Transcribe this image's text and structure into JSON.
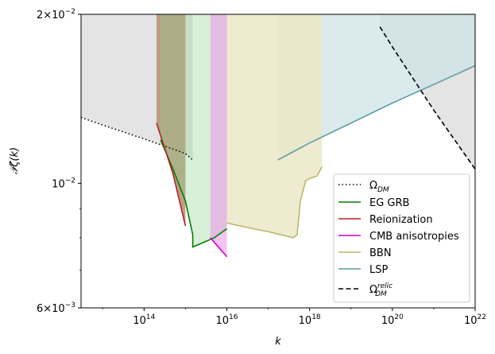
{
  "chart_data": {
    "type": "area",
    "xlabel": "k",
    "ylabel": "𝒫ζ(k)",
    "xscale": "log",
    "yscale": "log",
    "xlim": [
      3000000000000.0,
      1e+22
    ],
    "ylim": [
      0.006,
      0.02
    ],
    "x_ticks": [
      {
        "value": 100000000000000.0,
        "base": "10",
        "exp": "14"
      },
      {
        "value": 1e+16,
        "base": "10",
        "exp": "16"
      },
      {
        "value": 1e+18,
        "base": "10",
        "exp": "18"
      },
      {
        "value": 1e+20,
        "base": "10",
        "exp": "20"
      },
      {
        "value": 1e+22,
        "base": "10",
        "exp": "22"
      }
    ],
    "y_ticks": [
      {
        "value": 0.02,
        "mant": "2",
        "exp": "−2"
      },
      {
        "value": 0.01,
        "mant": "",
        "exp": "−2"
      },
      {
        "value": 0.006,
        "mant": "6",
        "exp": "−3"
      }
    ],
    "legend_position": "lower-right",
    "series": [
      {
        "name": "Ω_DM",
        "label_main": "Ω",
        "label_sub": "DM",
        "label_sup": "",
        "color": "#000000",
        "dash": "dotted",
        "fill": "#d9d9d9",
        "x": [
          3000000000000.0,
          10000000000000.0,
          100000000000000.0,
          1000000000000000.0,
          1500000000000000.0
        ],
        "y": [
          0.0131,
          0.0127,
          0.012,
          0.0113,
          0.011
        ]
      },
      {
        "name": "EG GRB",
        "label_main": "EG GRB",
        "color": "#008000",
        "dash": "solid",
        "fill": "#8fd18f",
        "x": [
          250000000000000.0,
          500000000000000.0,
          1000000000000000.0,
          1500000000000000.0,
          1500000000000000.0,
          5000000000000000.0,
          1e+16
        ],
        "y": [
          0.01195,
          0.0106,
          0.0093,
          0.0081,
          0.0077,
          0.008,
          0.0083
        ]
      },
      {
        "name": "Reionization",
        "label_main": "Reionization",
        "color": "#b22222",
        "dash": "solid",
        "fill": "#b8947a",
        "x": [
          200000000000000.0,
          500000000000000.0,
          1000000000000000.0
        ],
        "y": [
          0.0128,
          0.0104,
          0.0084
        ]
      },
      {
        "name": "CMB anisotropies",
        "label_main": "CMB anisotropies",
        "color": "#cc00cc",
        "dash": "solid",
        "fill": "#ee88ee",
        "x": [
          4000000000000000.0,
          1e+16
        ],
        "y": [
          0.008,
          0.0074
        ]
      },
      {
        "name": "BBN",
        "label_main": "BBN",
        "color": "#bdb76b",
        "dash": "solid",
        "fill": "#ebe7c8",
        "x": [
          1e+16,
          2e+16,
          1e+17,
          2e+17,
          4e+17,
          5e+17,
          6e+17,
          8e+17,
          1e+18,
          1.5e+18,
          2e+18
        ],
        "y": [
          0.0085,
          0.0084,
          0.0082,
          0.0081,
          0.008,
          0.0081,
          0.0093,
          0.0101,
          0.0102,
          0.0103,
          0.0107
        ]
      },
      {
        "name": "LSP",
        "label_main": "LSP",
        "color": "#5f9ea0",
        "dash": "solid",
        "fill": "#cfe3e6",
        "x": [
          1.7e+17,
          1e+18,
          1e+19,
          1e+20,
          1e+21,
          1e+22
        ],
        "y": [
          0.011,
          0.0118,
          0.0128,
          0.0139,
          0.015,
          0.0162
        ]
      },
      {
        "name": "Ω_DM^relic",
        "label_main": "Ω",
        "label_sub": "DM",
        "label_sup": "relic",
        "color": "#000000",
        "dash": "dashed",
        "fill": "",
        "x": [
          5e+19,
          1e+20,
          1e+21,
          1e+22
        ],
        "y": [
          0.019,
          0.0175,
          0.0135,
          0.0106
        ]
      }
    ]
  }
}
